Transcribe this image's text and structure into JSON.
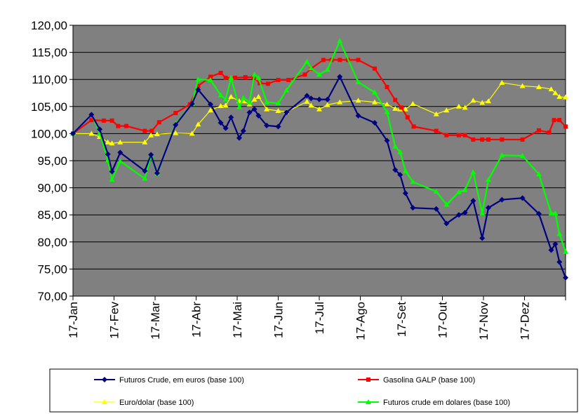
{
  "chart_data": {
    "type": "line",
    "title": "",
    "xlabel": "",
    "ylabel": "",
    "ylim": [
      70,
      120
    ],
    "y_ticks": [
      "70,00",
      "75,00",
      "80,00",
      "85,00",
      "90,00",
      "95,00",
      "100,00",
      "105,00",
      "110,00",
      "115,00",
      "120,00"
    ],
    "x_ticks": [
      "17-Jan",
      "17-Fev",
      "17-Mar",
      "17-Abr",
      "17-Mai",
      "17-Jun",
      "17-Jul",
      "17-Ago",
      "17-Set",
      "17-Out",
      "17-Nov",
      "17-Dez"
    ],
    "grid": true,
    "legend_position": "bottom",
    "plot_background": "#808080",
    "series": [
      {
        "name": "Futuros Crude,  em euros (base 100)",
        "color": "#000080",
        "marker": "diamond",
        "points": [
          [
            0,
            100
          ],
          [
            0.45,
            103.5
          ],
          [
            0.65,
            100.8
          ],
          [
            0.85,
            96.2
          ],
          [
            0.95,
            93
          ],
          [
            1.15,
            96.5
          ],
          [
            1.75,
            93.1
          ],
          [
            1.9,
            96.1
          ],
          [
            2.05,
            92.7
          ],
          [
            2.5,
            101.6
          ],
          [
            2.9,
            105.5
          ],
          [
            3.05,
            108.1
          ],
          [
            3.35,
            105.4
          ],
          [
            3.6,
            102
          ],
          [
            3.72,
            101
          ],
          [
            3.85,
            103
          ],
          [
            4.05,
            99.2
          ],
          [
            4.15,
            100.5
          ],
          [
            4.3,
            103.9
          ],
          [
            4.42,
            104.5
          ],
          [
            4.52,
            103.3
          ],
          [
            4.72,
            101.5
          ],
          [
            5.0,
            101.3
          ],
          [
            5.2,
            103.9
          ],
          [
            5.7,
            107
          ],
          [
            5.8,
            106.5
          ],
          [
            6.0,
            106.3
          ],
          [
            6.2,
            106.3
          ],
          [
            6.5,
            110.5
          ],
          [
            6.95,
            103.3
          ],
          [
            7.35,
            102
          ],
          [
            7.65,
            98.7
          ],
          [
            7.85,
            93.3
          ],
          [
            7.97,
            92.4
          ],
          [
            8.1,
            89
          ],
          [
            8.28,
            86.3
          ],
          [
            8.85,
            86.1
          ],
          [
            9.1,
            83.4
          ],
          [
            9.4,
            85
          ],
          [
            9.55,
            85.4
          ],
          [
            9.75,
            87.6
          ],
          [
            9.97,
            80.7
          ],
          [
            10.12,
            86.3
          ],
          [
            10.45,
            87.8
          ],
          [
            10.95,
            88.1
          ],
          [
            11.35,
            85.2
          ],
          [
            11.65,
            78.5
          ],
          [
            11.75,
            79.6
          ],
          [
            11.85,
            76.3
          ],
          [
            12.0,
            73.4
          ]
        ]
      },
      {
        "name": "Gasolina GALP (base 100)",
        "color": "#ff0000",
        "marker": "square",
        "points": [
          [
            0,
            100
          ],
          [
            0.45,
            102.5
          ],
          [
            0.75,
            102.4
          ],
          [
            0.95,
            102.4
          ],
          [
            1.1,
            101.4
          ],
          [
            1.3,
            101.4
          ],
          [
            1.75,
            100.5
          ],
          [
            1.92,
            100.5
          ],
          [
            2.1,
            102.1
          ],
          [
            2.5,
            103.8
          ],
          [
            2.85,
            105.4
          ],
          [
            3.05,
            108.8
          ],
          [
            3.35,
            110.5
          ],
          [
            3.6,
            111.2
          ],
          [
            3.72,
            110.3
          ],
          [
            3.95,
            110.3
          ],
          [
            4.2,
            110.4
          ],
          [
            4.4,
            110.4
          ],
          [
            4.55,
            109.3
          ],
          [
            4.75,
            109.2
          ],
          [
            5.0,
            109.9
          ],
          [
            5.25,
            109.9
          ],
          [
            5.65,
            110.9
          ],
          [
            5.8,
            112
          ],
          [
            6.1,
            113.6
          ],
          [
            6.3,
            113.6
          ],
          [
            6.5,
            113.6
          ],
          [
            6.7,
            113.6
          ],
          [
            6.95,
            113.6
          ],
          [
            7.35,
            112
          ],
          [
            7.65,
            108.6
          ],
          [
            7.85,
            106.2
          ],
          [
            8.0,
            104.8
          ],
          [
            8.15,
            103
          ],
          [
            8.3,
            101.3
          ],
          [
            8.85,
            100.5
          ],
          [
            9.1,
            99.7
          ],
          [
            9.4,
            99.7
          ],
          [
            9.55,
            99.7
          ],
          [
            9.75,
            98.9
          ],
          [
            9.97,
            98.9
          ],
          [
            10.12,
            98.9
          ],
          [
            10.45,
            98.9
          ],
          [
            10.95,
            98.9
          ],
          [
            11.35,
            100.6
          ],
          [
            11.6,
            100.2
          ],
          [
            11.72,
            102.5
          ],
          [
            11.85,
            102.5
          ],
          [
            12.0,
            101.3
          ]
        ]
      },
      {
        "name": "Euro/dolar (base 100)",
        "color": "#ffff00",
        "marker": "triangle",
        "points": [
          [
            0,
            100
          ],
          [
            0.45,
            100
          ],
          [
            0.65,
            99.4
          ],
          [
            0.85,
            98.4
          ],
          [
            0.95,
            98.2
          ],
          [
            1.15,
            98.4
          ],
          [
            1.75,
            98.4
          ],
          [
            1.9,
            99.7
          ],
          [
            2.05,
            99.9
          ],
          [
            2.5,
            100.1
          ],
          [
            2.9,
            100
          ],
          [
            3.05,
            101.7
          ],
          [
            3.35,
            104.3
          ],
          [
            3.6,
            105.1
          ],
          [
            3.72,
            105.2
          ],
          [
            3.85,
            106.8
          ],
          [
            4.05,
            106
          ],
          [
            4.15,
            106
          ],
          [
            4.3,
            105.4
          ],
          [
            4.42,
            106.3
          ],
          [
            4.52,
            106.8
          ],
          [
            4.72,
            104.5
          ],
          [
            5.0,
            104.2
          ],
          [
            5.2,
            104
          ],
          [
            5.7,
            105.9
          ],
          [
            5.8,
            105.2
          ],
          [
            6.0,
            104.5
          ],
          [
            6.2,
            105.3
          ],
          [
            6.5,
            105.8
          ],
          [
            6.95,
            106.1
          ],
          [
            7.35,
            105.8
          ],
          [
            7.65,
            105.4
          ],
          [
            7.85,
            104.6
          ],
          [
            7.97,
            104.5
          ],
          [
            8.1,
            104.5
          ],
          [
            8.28,
            105.5
          ],
          [
            8.85,
            103.6
          ],
          [
            9.1,
            104.3
          ],
          [
            9.4,
            105
          ],
          [
            9.55,
            104.8
          ],
          [
            9.75,
            106.1
          ],
          [
            9.97,
            105.7
          ],
          [
            10.12,
            106
          ],
          [
            10.45,
            109.4
          ],
          [
            10.95,
            108.8
          ],
          [
            11.35,
            108.6
          ],
          [
            11.65,
            108.2
          ],
          [
            11.75,
            107.5
          ],
          [
            11.85,
            106.8
          ],
          [
            12.0,
            106.7
          ]
        ]
      },
      {
        "name": "Futuros crude em dolares (base 100)",
        "color": "#00ff00",
        "marker": "triangle",
        "points": [
          [
            0,
            100
          ],
          [
            0.45,
            103.6
          ],
          [
            0.65,
            100.1
          ],
          [
            0.85,
            95.1
          ],
          [
            0.95,
            91.5
          ],
          [
            1.15,
            94.9
          ],
          [
            1.75,
            91.7
          ],
          [
            1.9,
            95.9
          ],
          [
            2.05,
            92.6
          ],
          [
            2.5,
            101.8
          ],
          [
            2.9,
            105.5
          ],
          [
            3.05,
            110
          ],
          [
            3.35,
            109.9
          ],
          [
            3.6,
            107.1
          ],
          [
            3.72,
            106.3
          ],
          [
            3.85,
            110.3
          ],
          [
            4.05,
            104.9
          ],
          [
            4.15,
            106.6
          ],
          [
            4.3,
            105.8
          ],
          [
            4.42,
            110.9
          ],
          [
            4.52,
            110.3
          ],
          [
            4.72,
            105.8
          ],
          [
            5.0,
            105.6
          ],
          [
            5.2,
            108
          ],
          [
            5.7,
            113.3
          ],
          [
            5.8,
            112.1
          ],
          [
            6.0,
            110.9
          ],
          [
            6.2,
            111.8
          ],
          [
            6.5,
            117.1
          ],
          [
            6.95,
            109.5
          ],
          [
            7.35,
            107.6
          ],
          [
            7.65,
            104
          ],
          [
            7.85,
            97.6
          ],
          [
            7.97,
            96.6
          ],
          [
            8.1,
            93.1
          ],
          [
            8.28,
            91.1
          ],
          [
            8.85,
            89.3
          ],
          [
            9.1,
            86.9
          ],
          [
            9.4,
            89.2
          ],
          [
            9.55,
            89.6
          ],
          [
            9.75,
            92.9
          ],
          [
            9.97,
            85.3
          ],
          [
            10.12,
            91.5
          ],
          [
            10.45,
            96
          ],
          [
            10.95,
            95.9
          ],
          [
            11.35,
            92.5
          ],
          [
            11.65,
            85.3
          ],
          [
            11.75,
            85.3
          ],
          [
            11.85,
            81.5
          ],
          [
            12.0,
            78.2
          ]
        ]
      }
    ]
  }
}
